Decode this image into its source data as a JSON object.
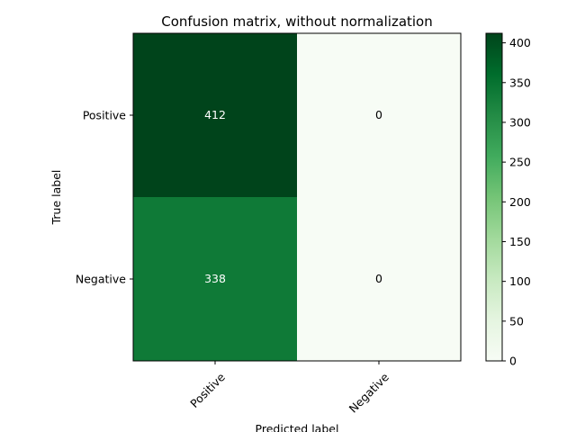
{
  "chart_data": {
    "type": "heatmap",
    "title": "Confusion matrix, without normalization",
    "xlabel": "Predicted label",
    "ylabel": "True label",
    "x_categories": [
      "Positive",
      "Negative"
    ],
    "y_categories": [
      "Positive",
      "Negative"
    ],
    "values": [
      [
        412,
        0
      ],
      [
        338,
        0
      ]
    ],
    "cell_labels": [
      [
        "412",
        "0"
      ],
      [
        "338",
        "0"
      ]
    ],
    "colormap": "Greens",
    "color_range": [
      0,
      412
    ],
    "colorbar": {
      "ticks": [
        0,
        50,
        100,
        150,
        200,
        250,
        300,
        350,
        400
      ],
      "tick_labels": [
        "0",
        "50",
        "100",
        "150",
        "200",
        "250",
        "300",
        "350",
        "400"
      ]
    },
    "colors": {
      "cell_412": "#00441b",
      "cell_338": "#0f7a37",
      "cell_0": "#f7fcf5",
      "text_light": "#ffffff",
      "text_dark": "#000000"
    }
  }
}
